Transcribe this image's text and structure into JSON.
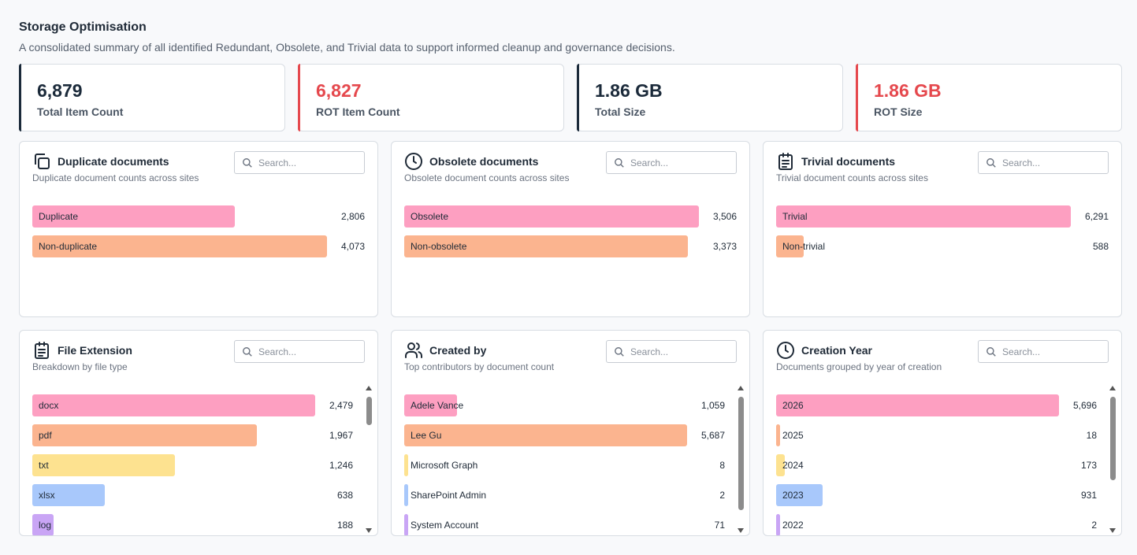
{
  "header": {
    "title": "Storage Optimisation",
    "subtitle": "A consolidated summary of all identified Redundant, Obsolete, and Trivial data to support informed cleanup and governance decisions."
  },
  "kpis": [
    {
      "value": "6,879",
      "label": "Total Item Count",
      "accent": "#1b2a3a"
    },
    {
      "value": "6,827",
      "label": "ROT Item Count",
      "accent": "#e5484d"
    },
    {
      "value": "1.86 GB",
      "label": "Total Size",
      "accent": "#1b2a3a"
    },
    {
      "value": "1.86 GB",
      "label": "ROT Size",
      "accent": "#e5484d"
    }
  ],
  "colors": {
    "pink": "#fd9fc1",
    "orange": "#fbb48f",
    "yellow": "#fde290",
    "blue": "#a8c8fb",
    "purple": "#c9a5f5",
    "dark_value": "#1b2a3a",
    "red_value": "#e5484d"
  },
  "cards": {
    "duplicate": {
      "icon": "copy-icon",
      "title": "Duplicate documents",
      "subtitle": "Duplicate document counts across sites",
      "search_placeholder": "Search...",
      "rows": [
        {
          "label": "Duplicate",
          "value": "2,806",
          "fraction": 0.688
        },
        {
          "label": "Non-duplicate",
          "value": "4,073",
          "fraction": 1.0
        }
      ]
    },
    "obsolete": {
      "icon": "clock-icon",
      "title": "Obsolete documents",
      "subtitle": "Obsolete document counts across sites",
      "search_placeholder": "Search...",
      "rows": [
        {
          "label": "Obsolete",
          "value": "3,506",
          "fraction": 1.0
        },
        {
          "label": "Non-obsolete",
          "value": "3,373",
          "fraction": 0.962
        }
      ]
    },
    "trivial": {
      "icon": "clipboard-icon",
      "title": "Trivial documents",
      "subtitle": "Trivial document counts across sites",
      "search_placeholder": "Search...",
      "rows": [
        {
          "label": "Trivial",
          "value": "6,291",
          "fraction": 1.0
        },
        {
          "label": "Non-trivial",
          "value": "588",
          "fraction": 0.093
        }
      ]
    },
    "extension": {
      "icon": "clipboard-list-icon",
      "title": "File Extension",
      "subtitle": "Breakdown by file type",
      "search_placeholder": "Search...",
      "rows": [
        {
          "label": "docx",
          "value": "2,479",
          "fraction": 1.0
        },
        {
          "label": "pdf",
          "value": "1,967",
          "fraction": 0.793
        },
        {
          "label": "txt",
          "value": "1,246",
          "fraction": 0.503
        },
        {
          "label": "xlsx",
          "value": "638",
          "fraction": 0.257
        },
        {
          "label": "log",
          "value": "188",
          "fraction": 0.076
        }
      ]
    },
    "created_by": {
      "icon": "users-icon",
      "title": "Created by",
      "subtitle": "Top contributors by document count",
      "search_placeholder": "Search...",
      "rows": [
        {
          "label": "Adele Vance",
          "value": "1,059",
          "fraction": 0.186
        },
        {
          "label": "Lee Gu",
          "value": "5,687",
          "fraction": 1.0
        },
        {
          "label": "Microsoft Graph",
          "value": "8",
          "fraction": 0.0014
        },
        {
          "label": "SharePoint Admin",
          "value": "2",
          "fraction": 0.0004
        },
        {
          "label": "System Account",
          "value": "71",
          "fraction": 0.012
        }
      ]
    },
    "year": {
      "icon": "clock-icon",
      "title": "Creation Year",
      "subtitle": "Documents grouped by year of creation",
      "search_placeholder": "Search...",
      "rows": [
        {
          "label": "2026",
          "value": "5,696",
          "fraction": 1.0
        },
        {
          "label": "2025",
          "value": "18",
          "fraction": 0.003
        },
        {
          "label": "2024",
          "value": "173",
          "fraction": 0.03
        },
        {
          "label": "2023",
          "value": "931",
          "fraction": 0.163
        },
        {
          "label": "2022",
          "value": "2",
          "fraction": 0.0004
        }
      ]
    }
  }
}
